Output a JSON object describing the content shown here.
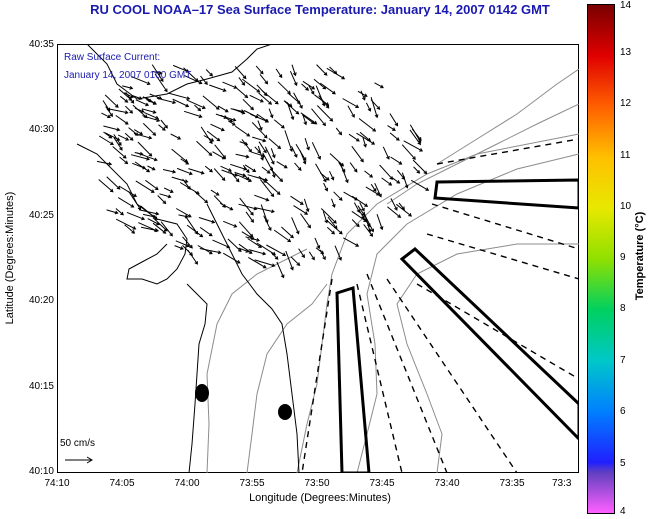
{
  "header": {
    "title": "RU COOL  NOAA–17  Sea Surface Temperature:  January 14, 2007 0142 GMT"
  },
  "legend": {
    "current_label": "Raw Surface Current:",
    "current_time": "January 14, 2007 0100 GMT",
    "scale_label": "50 cm/s"
  },
  "axes": {
    "xlabel": "Longitude (Degrees:Minutes)",
    "ylabel": "Latitude (Degrees:Minutes)",
    "x_ticks": [
      "74:10",
      "74:05",
      "74:00",
      "73:55",
      "73:50",
      "73:45",
      "73:40",
      "73:35",
      "73:3"
    ],
    "y_ticks": [
      "40:35",
      "40:30",
      "40:25",
      "40:20",
      "40:15",
      "40:10"
    ]
  },
  "colorbar": {
    "label": "Temperature (°C)",
    "ticks": [
      "14",
      "13",
      "12",
      "11",
      "10",
      "9",
      "8",
      "7",
      "6",
      "5",
      "4"
    ],
    "range": [
      4,
      14
    ]
  },
  "colors": {
    "title": "#1a1ab0",
    "coastline": "#000000",
    "bathymetry": "#8c8c8c"
  }
}
